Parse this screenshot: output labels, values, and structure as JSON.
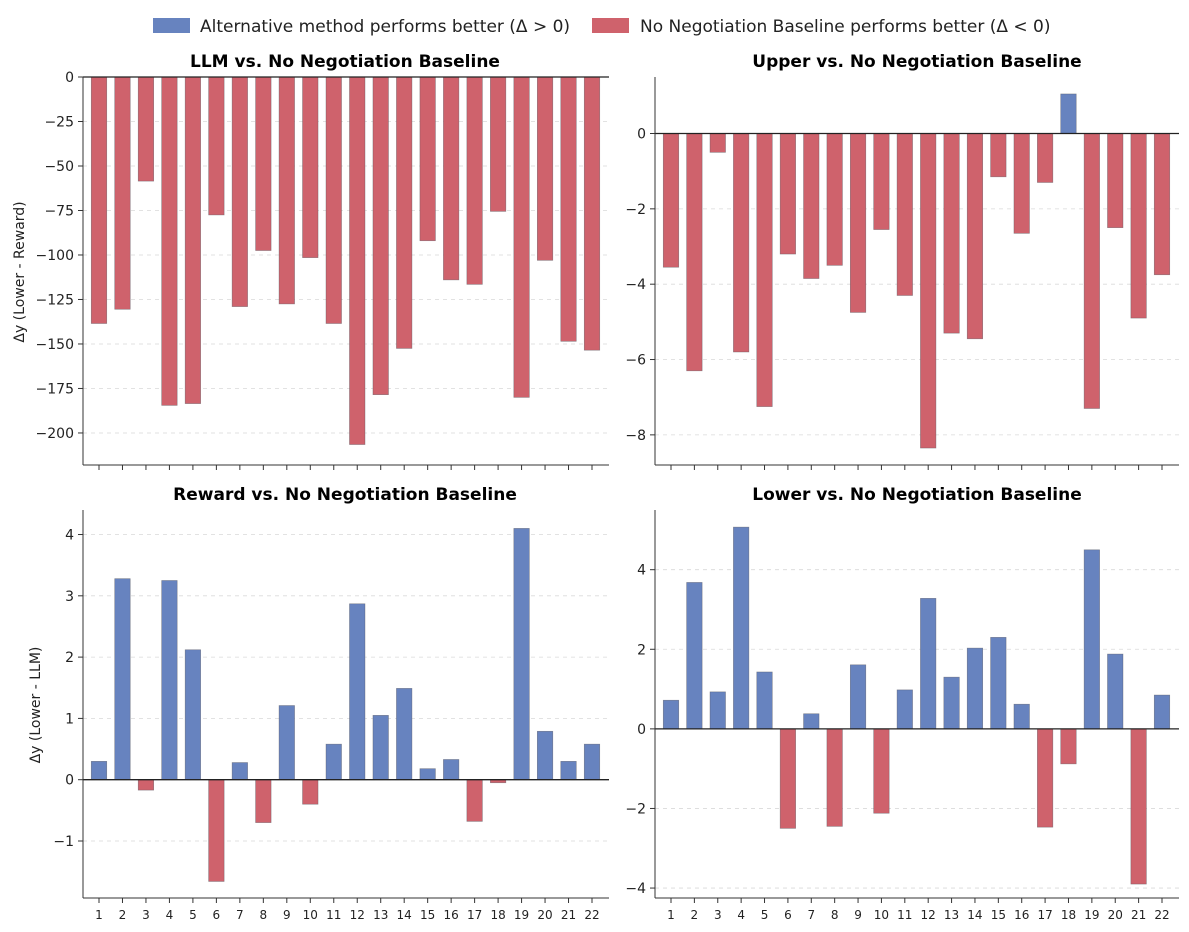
{
  "legend": {
    "positive_label": "Alternative method performs better (Δ > 0)",
    "negative_label": "No Negotiation Baseline performs better (Δ < 0)"
  },
  "colors": {
    "positive": "#6783bf",
    "negative": "#cf626c"
  },
  "chart_data": [
    {
      "type": "bar",
      "title": "LLM vs. No Negotiation Baseline",
      "ylabel": "Δy (Lower - Reward)",
      "categories": [
        "1",
        "2",
        "3",
        "4",
        "5",
        "6",
        "7",
        "8",
        "9",
        "10",
        "11",
        "12",
        "13",
        "14",
        "15",
        "16",
        "17",
        "18",
        "19",
        "20",
        "21",
        "22"
      ],
      "values": [
        -138.5,
        -130.5,
        -58.5,
        -184.5,
        -183.5,
        -77.5,
        -129,
        -97.5,
        -127.5,
        -101.5,
        -138.5,
        -206.5,
        -178.5,
        -152.5,
        -92,
        -114,
        -116.5,
        -75.5,
        -180,
        -103,
        -148.5,
        -153.5
      ],
      "ylim": [
        -218,
        0
      ],
      "yticks": [
        0,
        -25,
        -50,
        -75,
        -100,
        -125,
        -150,
        -175,
        -200
      ],
      "ytick_labels": [
        "0",
        "−25",
        "−50",
        "−75",
        "−100",
        "−125",
        "−150",
        "−175",
        "−200"
      ],
      "show_xtick_labels": false
    },
    {
      "type": "bar",
      "title": "Upper vs. No Negotiation Baseline",
      "ylabel": "",
      "categories": [
        "1",
        "2",
        "3",
        "4",
        "5",
        "6",
        "7",
        "8",
        "9",
        "10",
        "11",
        "12",
        "13",
        "14",
        "15",
        "16",
        "17",
        "18",
        "19",
        "20",
        "21",
        "22"
      ],
      "values": [
        -3.55,
        -6.3,
        -0.5,
        -5.8,
        -7.25,
        -3.2,
        -3.85,
        -3.5,
        -4.75,
        -2.55,
        -4.3,
        -8.35,
        -5.3,
        -5.45,
        -1.15,
        -2.65,
        -1.3,
        1.05,
        -7.3,
        -2.5,
        -4.9,
        -3.75
      ],
      "ylim": [
        -8.8,
        1.5
      ],
      "yticks": [
        0,
        -2,
        -4,
        -6,
        -8
      ],
      "ytick_labels": [
        "0",
        "−2",
        "−4",
        "−6",
        "−8"
      ],
      "show_xtick_labels": false
    },
    {
      "type": "bar",
      "title": "Reward vs. No Negotiation Baseline",
      "ylabel": "Δy (Lower - LLM)",
      "categories": [
        "1",
        "2",
        "3",
        "4",
        "5",
        "6",
        "7",
        "8",
        "9",
        "10",
        "11",
        "12",
        "13",
        "14",
        "15",
        "16",
        "17",
        "18",
        "19",
        "20",
        "21",
        "22"
      ],
      "values": [
        0.3,
        3.28,
        -0.17,
        3.25,
        2.12,
        -1.66,
        0.28,
        -0.7,
        1.21,
        -0.4,
        0.58,
        2.87,
        1.05,
        1.49,
        0.18,
        0.33,
        -0.68,
        -0.05,
        4.1,
        0.79,
        0.3,
        0.58
      ],
      "ylim": [
        -1.93,
        4.4
      ],
      "yticks": [
        -1,
        0,
        1,
        2,
        3,
        4
      ],
      "ytick_labels": [
        "−1",
        "0",
        "1",
        "2",
        "3",
        "4"
      ],
      "show_xtick_labels": true
    },
    {
      "type": "bar",
      "title": "Lower vs. No Negotiation Baseline",
      "ylabel": "",
      "categories": [
        "1",
        "2",
        "3",
        "4",
        "5",
        "6",
        "7",
        "8",
        "9",
        "10",
        "11",
        "12",
        "13",
        "14",
        "15",
        "16",
        "17",
        "18",
        "19",
        "20",
        "21",
        "22"
      ],
      "values": [
        0.72,
        3.68,
        0.93,
        5.07,
        1.43,
        -2.5,
        0.38,
        -2.45,
        1.61,
        -2.12,
        0.98,
        3.28,
        1.3,
        2.03,
        2.3,
        0.62,
        -2.47,
        -0.88,
        4.5,
        1.88,
        -3.9,
        0.85
      ],
      "ylim": [
        -4.25,
        5.5
      ],
      "yticks": [
        -4,
        -2,
        0,
        2,
        4
      ],
      "ytick_labels": [
        "−4",
        "−2",
        "0",
        "2",
        "4"
      ],
      "show_xtick_labels": true
    }
  ]
}
